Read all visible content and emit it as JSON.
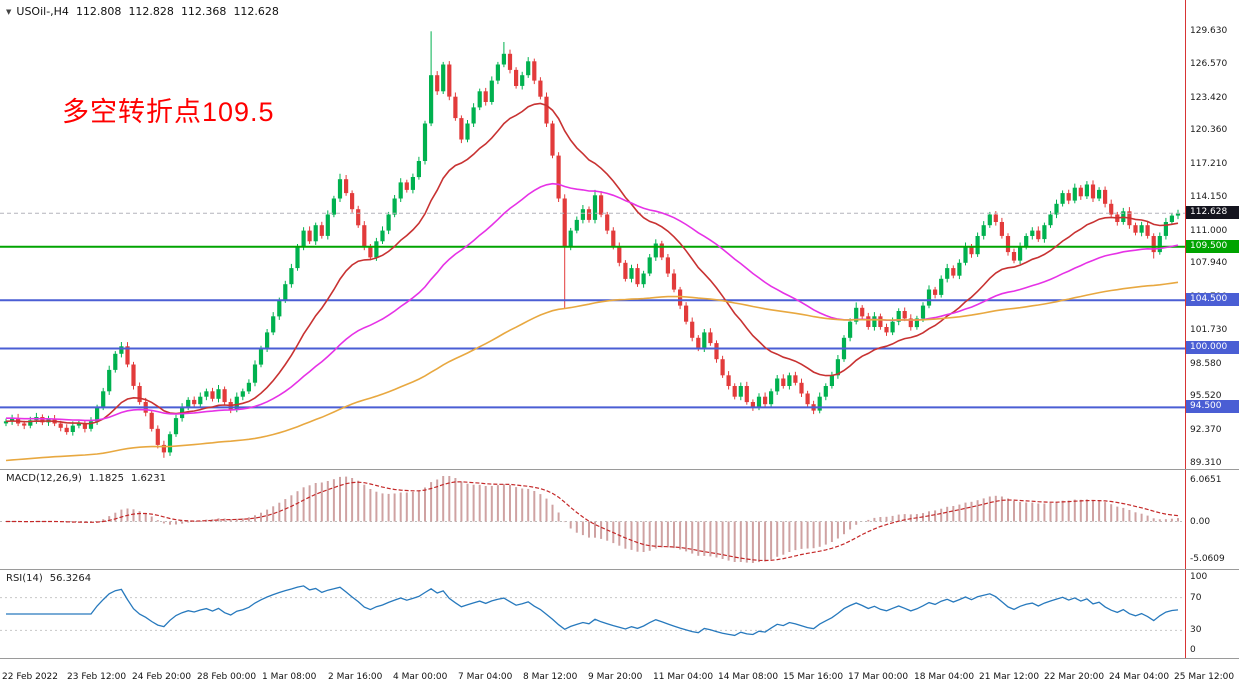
{
  "window": {
    "symbol_line": {
      "symbol": "USOil-,H4",
      "open": "112.808",
      "high": "112.828",
      "low": "112.368",
      "close": "112.628"
    }
  },
  "annotation": {
    "text": "多空转折点109.5",
    "color": "#ff0000"
  },
  "main_chart": {
    "axis_max": 129.63,
    "axis_min": 89.31,
    "price_axis_labels": [
      "129.630",
      "126.570",
      "123.420",
      "120.360",
      "117.210",
      "114.150",
      "111.000",
      "107.940",
      "104.790",
      "101.730",
      "98.580",
      "95.520",
      "92.370",
      "89.310"
    ],
    "current_price_badge": {
      "text": "112.628",
      "price": 112.628,
      "bg": "#14141e"
    },
    "hlines": [
      {
        "price": 109.5,
        "label": "109.500",
        "color": "#00a400"
      },
      {
        "price": 104.5,
        "label": "104.500",
        "color": "#4a5ed4"
      },
      {
        "price": 100.0,
        "label": "100.000",
        "color": "#4a5ed4"
      },
      {
        "price": 94.5,
        "label": "94.500",
        "color": "#4a5ed4"
      }
    ],
    "colors": {
      "up": "#00b14f",
      "down": "#e23b3b",
      "current_line": "#b4b4bc"
    }
  },
  "macd_panel": {
    "title": "MACD(12,26,9)",
    "value_main": "1.1825",
    "value_signal": "1.6231",
    "axis_top": "6.0651",
    "axis_zero": "0.00",
    "axis_bottom": "-5.0609",
    "hist_color": "#cfa2a2",
    "signal_color": "#c42828"
  },
  "rsi_panel": {
    "title": "RSI(14)",
    "value": "56.3264",
    "axis_labels": [
      "100",
      "70",
      "30",
      "0"
    ],
    "levels": [
      70,
      30
    ],
    "line_color": "#2779bd"
  },
  "time_axis": {
    "labels": [
      "22 Feb 2022",
      "23 Feb 12:00",
      "24 Feb 20:00",
      "28 Feb 00:00",
      "1 Mar 08:00",
      "2 Mar 16:00",
      "4 Mar 00:00",
      "7 Mar 04:00",
      "8 Mar 12:00",
      "9 Mar 20:00",
      "11 Mar 04:00",
      "14 Mar 08:00",
      "15 Mar 16:00",
      "17 Mar 00:00",
      "18 Mar 04:00",
      "21 Mar 12:00",
      "22 Mar 20:00",
      "24 Mar 04:00",
      "25 Mar 12:00"
    ]
  },
  "chart_data": {
    "type": "candlestick",
    "symbol": "USOil",
    "timeframe": "H4",
    "title": "USOil-,H4",
    "ylim": [
      89.31,
      129.63
    ],
    "last_close": 112.628,
    "closes": [
      93.2,
      93.5,
      93.0,
      92.8,
      93.3,
      93.6,
      93.1,
      93.4,
      93.0,
      92.6,
      92.2,
      92.8,
      93.0,
      92.5,
      93.2,
      94.5,
      96.0,
      98.0,
      99.5,
      100.2,
      98.5,
      96.5,
      95.0,
      94.0,
      92.5,
      91.0,
      90.3,
      92.0,
      93.5,
      94.5,
      95.2,
      94.8,
      95.5,
      96.0,
      95.3,
      96.2,
      95.0,
      94.3,
      95.5,
      96.0,
      96.8,
      98.5,
      100.0,
      101.5,
      103.0,
      104.5,
      106.0,
      107.5,
      109.5,
      111.0,
      110.0,
      111.5,
      110.5,
      112.5,
      114.0,
      115.8,
      114.5,
      113.0,
      111.5,
      109.5,
      108.5,
      110.0,
      111.0,
      112.5,
      114.0,
      115.5,
      114.8,
      116.0,
      117.5,
      121.0,
      125.5,
      124.0,
      126.5,
      123.5,
      121.5,
      119.5,
      121.0,
      122.5,
      124.0,
      123.0,
      125.0,
      126.5,
      127.5,
      126.0,
      124.5,
      125.5,
      126.8,
      125.0,
      123.5,
      121.0,
      118.0,
      114.0,
      109.5,
      111.0,
      112.0,
      113.0,
      112.0,
      114.3,
      112.5,
      111.0,
      109.5,
      108.0,
      106.5,
      107.5,
      106.0,
      107.0,
      108.5,
      109.8,
      108.5,
      107.0,
      105.5,
      104.0,
      102.5,
      101.0,
      100.0,
      101.5,
      100.5,
      99.0,
      97.5,
      96.5,
      95.5,
      96.5,
      95.0,
      94.5,
      95.5,
      94.8,
      96.0,
      97.2,
      96.5,
      97.5,
      96.8,
      95.8,
      94.8,
      94.2,
      95.5,
      96.5,
      97.5,
      99.0,
      101.0,
      102.5,
      103.8,
      103.0,
      102.0,
      103.0,
      102.0,
      101.5,
      102.5,
      103.5,
      102.8,
      102.0,
      102.8,
      104.0,
      105.5,
      105.0,
      106.5,
      107.5,
      106.8,
      108.0,
      109.5,
      108.8,
      110.5,
      111.5,
      112.5,
      111.8,
      110.5,
      109.0,
      108.2,
      109.5,
      110.5,
      111.0,
      110.2,
      111.5,
      112.5,
      113.5,
      114.5,
      113.8,
      115.0,
      114.2,
      115.3,
      114.0,
      114.8,
      113.5,
      112.5,
      111.8,
      112.8,
      111.5,
      110.8,
      111.5,
      110.5,
      109.0,
      110.5,
      111.8,
      112.4,
      112.628
    ],
    "wick_overrides": {
      "19": [
        100.6,
        null
      ],
      "26": [
        null,
        89.8
      ],
      "55": [
        116.3,
        null
      ],
      "70": [
        129.6,
        null
      ],
      "82": [
        128.6,
        null
      ],
      "92": [
        null,
        103.7
      ],
      "97": [
        114.8,
        null
      ],
      "140": [
        104.3,
        null
      ],
      "189": [
        null,
        108.4
      ]
    },
    "ma_overlays": [
      {
        "name": "MA-fast",
        "period": 20,
        "color": "#c83232",
        "seed": null
      },
      {
        "name": "MA-mid",
        "period": 55,
        "color": "#e632e6",
        "seed": 93.5
      },
      {
        "name": "MA-slow",
        "period": 160,
        "color": "#e8a840",
        "seed": 89.5
      }
    ],
    "macd": {
      "fast": 12,
      "slow": 26,
      "signal": 9,
      "main_value": 1.1825,
      "signal_value": 1.6231
    },
    "rsi": {
      "period": 14,
      "value": 56.3264
    }
  }
}
